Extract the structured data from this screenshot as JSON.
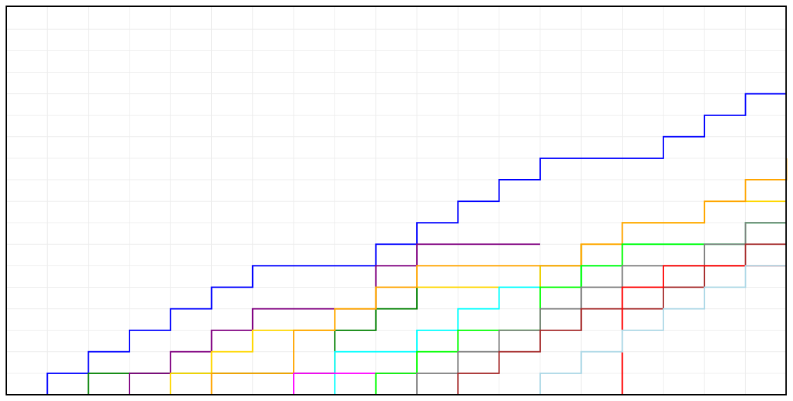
{
  "chart_data": {
    "type": "line",
    "step": "post",
    "title": "",
    "xlabel": "",
    "ylabel": "",
    "xlim": [
      0,
      19
    ],
    "ylim": [
      0,
      18
    ],
    "grid": true,
    "legend": "none",
    "grid_color": "#ececec",
    "frame_color": "#000000",
    "series": [
      {
        "color": "#0000ff",
        "x": [
          1,
          2,
          3,
          4,
          5,
          6,
          9,
          10,
          11,
          12,
          13,
          16,
          17,
          18,
          19
        ],
        "y": [
          1,
          2,
          3,
          4,
          5,
          6,
          7,
          8,
          9,
          10,
          11,
          12,
          13,
          14,
          14
        ]
      },
      {
        "color": "#008000",
        "x": [
          2,
          8,
          9,
          10,
          12,
          13,
          14
        ],
        "y": [
          1,
          3,
          4,
          5,
          5,
          6,
          7
        ]
      },
      {
        "color": "#800080",
        "x": [
          3,
          4,
          5,
          6,
          9,
          10,
          13
        ],
        "y": [
          1,
          2,
          3,
          4,
          6,
          7,
          7
        ]
      },
      {
        "color": "#ffd700",
        "x": [
          4,
          5,
          6,
          8,
          9,
          13,
          14,
          15,
          17,
          19
        ],
        "y": [
          1,
          2,
          3,
          4,
          5,
          6,
          7,
          8,
          9,
          9
        ]
      },
      {
        "color": "#ffa500",
        "x": [
          5,
          7,
          8,
          9,
          10,
          13,
          14,
          15,
          17,
          18,
          19
        ],
        "y": [
          1,
          3,
          4,
          5,
          6,
          6,
          7,
          8,
          9,
          10,
          11
        ]
      },
      {
        "color": "#00ffff",
        "x": [
          6,
          7,
          8,
          10,
          11,
          12,
          13,
          14,
          15,
          16,
          17,
          18,
          19
        ],
        "y": [
          0,
          0,
          2,
          3,
          4,
          5,
          5,
          6,
          7,
          7,
          7,
          8,
          8
        ]
      },
      {
        "color": "#ff00ff",
        "x": [
          7,
          9,
          10
        ],
        "y": [
          1,
          1,
          2
        ]
      },
      {
        "color": "#00ff00",
        "x": [
          9,
          10,
          11,
          13,
          14,
          15,
          16,
          17,
          18,
          19
        ],
        "y": [
          1,
          2,
          3,
          5,
          6,
          7,
          7,
          7,
          8,
          8
        ]
      },
      {
        "color": "#808080",
        "x": [
          10,
          11,
          12,
          13,
          14,
          15,
          16,
          17,
          18,
          19
        ],
        "y": [
          1,
          2,
          3,
          4,
          5,
          6,
          6,
          7,
          8,
          8
        ]
      },
      {
        "color": "#a52a2a",
        "x": [
          11,
          12,
          13,
          14,
          16,
          17,
          18,
          19
        ],
        "y": [
          1,
          2,
          3,
          4,
          5,
          6,
          7,
          7
        ]
      },
      {
        "color": "#ff0000",
        "x": [
          15,
          16,
          17,
          19
        ],
        "y": [
          5,
          6,
          6,
          6
        ]
      },
      {
        "color": "#add8e6",
        "x": [
          13,
          14,
          15,
          16,
          17,
          18,
          19
        ],
        "y": [
          1,
          2,
          3,
          4,
          5,
          6,
          6
        ]
      }
    ]
  }
}
